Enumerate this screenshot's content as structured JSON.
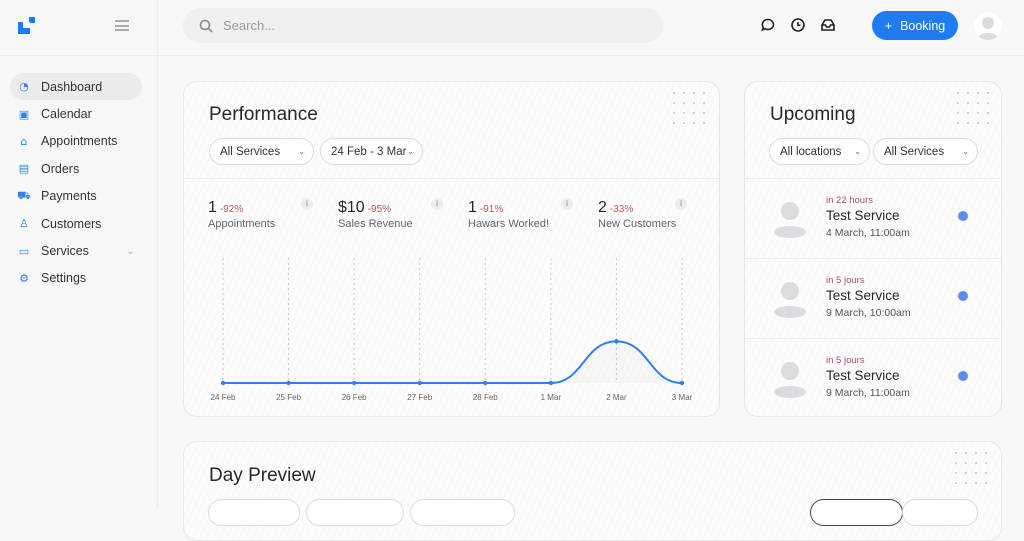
{
  "sidebar": {
    "items": [
      {
        "label": "Dashboard",
        "icon": "dashboard-icon",
        "active": true
      },
      {
        "label": "Calendar",
        "icon": "calendar-icon"
      },
      {
        "label": "Appointments",
        "icon": "inbox-icon"
      },
      {
        "label": "Orders",
        "icon": "book-icon"
      },
      {
        "label": "Payments",
        "icon": "cart-icon"
      },
      {
        "label": "Customers",
        "icon": "user-icon"
      },
      {
        "label": "Services",
        "icon": "folder-icon",
        "has_submenu": true
      },
      {
        "label": "Settings",
        "icon": "gear-icon"
      }
    ]
  },
  "header": {
    "search_placeholder": "Search...",
    "booking_label": "Booking",
    "accent": "#1f7cf0"
  },
  "performance": {
    "title": "Performance",
    "filter_service": "All Services",
    "filter_date": "24 Feb - 3 Mar",
    "stats": [
      {
        "value": "1",
        "delta": "-92%",
        "label": "Appointments"
      },
      {
        "value": "$10",
        "delta": "-95%",
        "label": "Sales Revenue"
      },
      {
        "value": "1",
        "delta": "-91%",
        "label": "Hawars Worked!"
      },
      {
        "value": "2",
        "delta": "-33%",
        "label": "New Customers"
      }
    ]
  },
  "chart_data": {
    "type": "line",
    "categories": [
      "24 Feb",
      "25 Feb",
      "26 Feb",
      "27 Feb",
      "28 Feb",
      "1 Mar",
      "2 Mar",
      "3 Mar"
    ],
    "values": [
      0,
      0,
      0,
      0,
      0,
      0,
      1,
      0
    ],
    "ylim": [
      0,
      3
    ],
    "grid": "vertical-dotted",
    "color": "#2f80ed"
  },
  "upcoming": {
    "title": "Upcoming",
    "filter_location": "All locations",
    "filter_service": "All Services",
    "items": [
      {
        "when": "in 22 hours",
        "title": "Test Service",
        "date": "4 March, 11:00am"
      },
      {
        "when": "in 5 jours",
        "title": "Test Service",
        "date": "9 March, 10:00am"
      },
      {
        "when": "in 5 jours",
        "title": "Test Service",
        "date": "9 March, 11:00am"
      }
    ]
  },
  "day_preview": {
    "title": "Day Preview"
  }
}
